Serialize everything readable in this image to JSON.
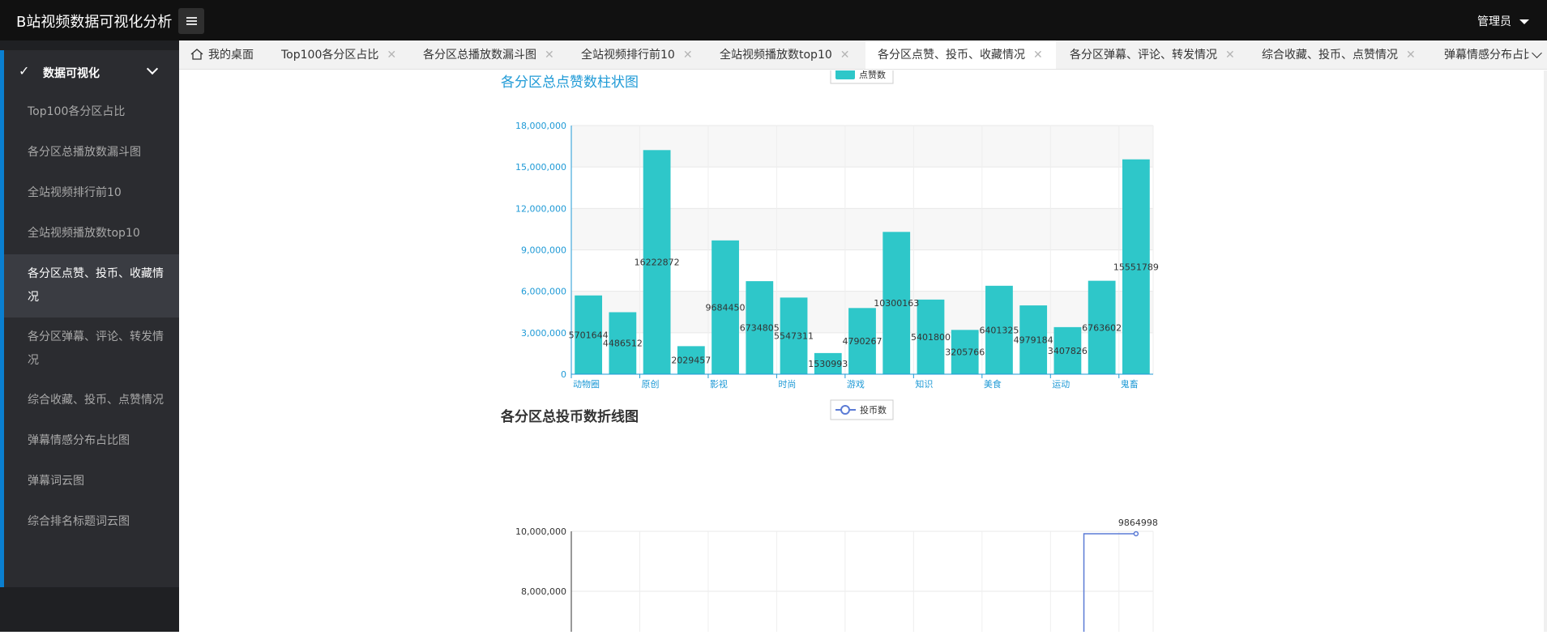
{
  "app": {
    "title": "B站视频数据可视化分析",
    "admin_label": "管理员"
  },
  "sidebar": {
    "group_label": "数据可视化",
    "items": [
      {
        "label": "Top100各分区占比"
      },
      {
        "label": "各分区总播放数漏斗图"
      },
      {
        "label": "全站视频排行前10"
      },
      {
        "label": "全站视频播放数top10"
      },
      {
        "label": "各分区点赞、投币、收藏情况",
        "active": true
      },
      {
        "label": "各分区弹幕、评论、转发情况"
      },
      {
        "label": "综合收藏、投币、点赞情况"
      },
      {
        "label": "弹幕情感分布占比图"
      },
      {
        "label": "弹幕词云图"
      },
      {
        "label": "综合排名标题词云图"
      }
    ]
  },
  "tabs": {
    "home": "我的桌面",
    "items": [
      {
        "label": "Top100各分区占比"
      },
      {
        "label": "各分区总播放数漏斗图"
      },
      {
        "label": "全站视频排行前10"
      },
      {
        "label": "全站视频播放数top10"
      },
      {
        "label": "各分区点赞、投币、收藏情况",
        "active": true
      },
      {
        "label": "各分区弹幕、评论、转发情况"
      },
      {
        "label": "综合收藏、投币、点赞情况"
      },
      {
        "label": "弹幕情感分布占比图"
      }
    ],
    "close_glyph": "✕"
  },
  "colors": {
    "bar": "#2ec7c9",
    "line": "#5b7bd5",
    "axis": "#1f9ad6",
    "title": "#1f9ad6",
    "sidebar_accent": "#0a7fd0"
  },
  "chart_data": [
    {
      "type": "bar",
      "title": "各分区总点赞数柱状图",
      "legend": "点赞数",
      "legend_position": "top",
      "categories": [
        "动物圈",
        "",
        "原创",
        "",
        "影视",
        "",
        "时尚",
        "",
        "游戏",
        "",
        "知识",
        "",
        "美食",
        "",
        "运动",
        "",
        "鬼畜"
      ],
      "values": [
        5701644,
        4486512,
        16222872,
        2029457,
        9684450,
        6734805,
        5547311,
        1530993,
        4790267,
        10300163,
        5401800,
        3205766,
        6401325,
        4979184,
        3407826,
        6763602,
        15551789
      ],
      "yticks": [
        "0",
        "3,000,000",
        "6,000,000",
        "9,000,000",
        "12,000,000",
        "15,000,000",
        "18,000,000"
      ],
      "ylim": [
        0,
        18000000
      ],
      "grid": true
    },
    {
      "type": "line",
      "title": "各分区总投币数折线图",
      "legend": "投币数",
      "legend_position": "top",
      "visible_ytick_labels": [
        "10,000,000",
        "8,000,000"
      ],
      "visible_point_label": "9864998",
      "visible_last_value": 9864998,
      "grid": true
    }
  ]
}
